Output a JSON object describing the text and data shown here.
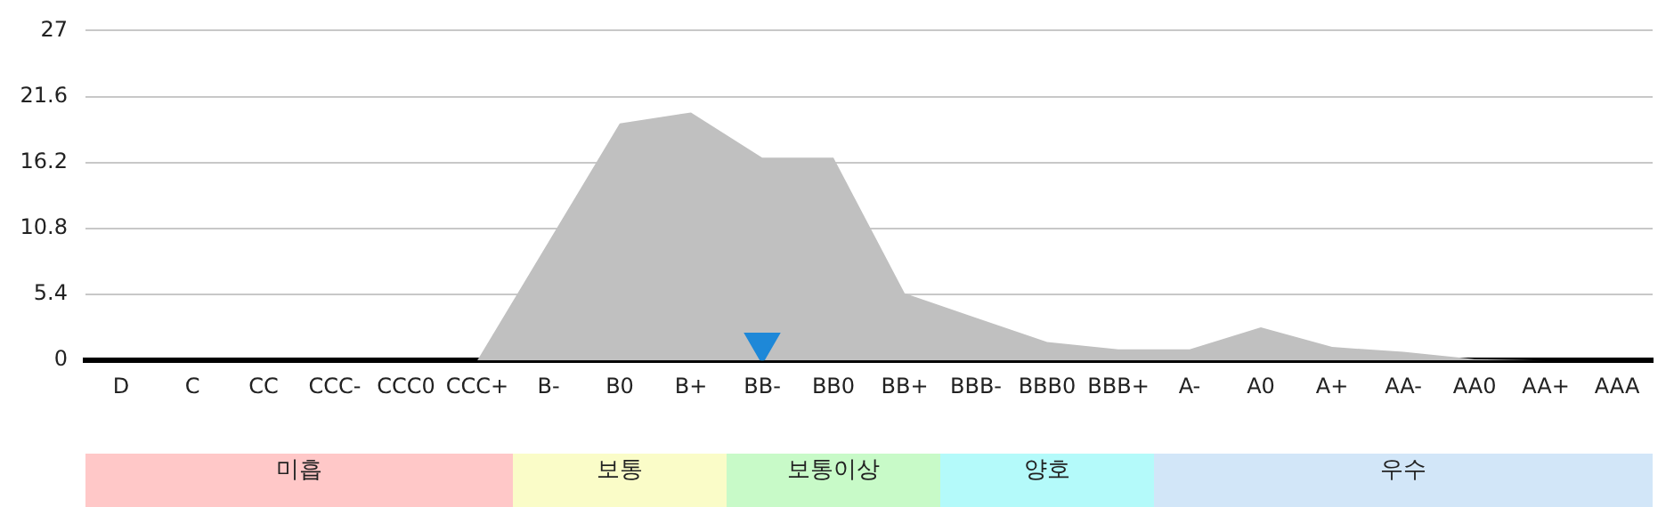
{
  "chart_data": {
    "type": "area",
    "categories": [
      "D",
      "C",
      "CC",
      "CCC-",
      "CCC0",
      "CCC+",
      "B-",
      "B0",
      "B+",
      "BB-",
      "BB0",
      "BB+",
      "BBB-",
      "BBB0",
      "BBB+",
      "A-",
      "A0",
      "A+",
      "AA-",
      "AA0",
      "AA+",
      "AAA"
    ],
    "series": [
      {
        "color": "#c0c0c0",
        "values": [
          0,
          0,
          0,
          0,
          0,
          0,
          9.7,
          19.4,
          20.3,
          16.6,
          16.6,
          5.5,
          3.5,
          1.5,
          0.9,
          0.9,
          2.7,
          1.1,
          0.7,
          0.1,
          0,
          0
        ]
      },
      {
        "type": "scatter",
        "color": "#1e88d8",
        "marker": "triangle",
        "x": [
          "BB-"
        ],
        "values": [
          1.4
        ]
      }
    ],
    "ylim": [
      0,
      27
    ],
    "yticks": [
      0,
      5.4,
      10.8,
      16.2,
      21.6,
      27
    ],
    "grid": "y",
    "annotations": [
      "미흡",
      "보통",
      "보통이상",
      "양호",
      "우수"
    ]
  }
}
